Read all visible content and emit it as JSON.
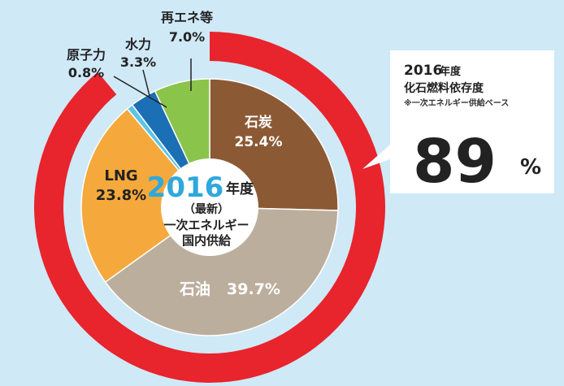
{
  "colors": {
    "background": "#cfe9f7",
    "outer_ring": "#e8242c",
    "coal": "#8b5a34",
    "oil": "#bcae9d",
    "lng": "#f5a93c",
    "nuclear": "#5bc4e8",
    "hydro": "#1a6fb5",
    "renewables": "#8bc44a",
    "center_year": "#2fa8dc"
  },
  "center": {
    "year": "2016",
    "year_suffix": "年度",
    "note": "（最新）",
    "line1": "一次エネルギー",
    "line2": "国内供給"
  },
  "callout": {
    "year": "2016",
    "year_suffix": "年度",
    "title": "化石燃料依存度",
    "note": "※一次エネルギー供給ベース",
    "value": "89",
    "unit": "%"
  },
  "chart_data": {
    "type": "pie",
    "categories": [
      "石炭",
      "石油",
      "LNG",
      "原子力",
      "水力",
      "再エネ等"
    ],
    "values": [
      25.4,
      39.7,
      23.8,
      0.8,
      3.3,
      7.0
    ],
    "value_labels": [
      "25.4%",
      "39.7%",
      "23.8%",
      "0.8%",
      "3.3%",
      "7.0%"
    ],
    "outer_ring": {
      "label": "化石燃料依存度",
      "value": 89
    }
  }
}
